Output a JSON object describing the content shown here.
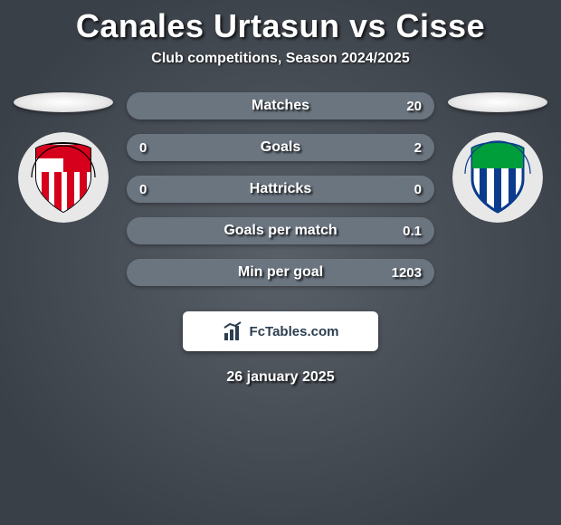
{
  "title": "Canales Urtasun vs Cisse",
  "subtitle": "Club competitions, Season 2024/2025",
  "date": "26 january 2025",
  "attribution": "FcTables.com",
  "colors": {
    "background_center": "#5a6068",
    "background_edge": "#3a4048",
    "pill_bg": "#4b5560",
    "pill_fill_color": "#6b7580",
    "attribution_bg": "#ffffff",
    "attribution_text": "#2c3e50",
    "text": "#ffffff",
    "crest_left_bg": "#e8e8e8",
    "crest_right_bg": "#e8e8e8"
  },
  "players": {
    "left": {
      "name": "Canales Urtasun",
      "club": "Athletic Club Bilbao",
      "crest_colors": {
        "stripes": [
          "#d6001c",
          "#ffffff"
        ],
        "border": "#000000"
      }
    },
    "right": {
      "name": "Cisse",
      "club": "CD Leganes",
      "crest_colors": {
        "stripes": [
          "#0a3b8c",
          "#ffffff"
        ],
        "accent": "#009e3b",
        "border": "#0a3b8c"
      }
    }
  },
  "stats": [
    {
      "label": "Matches",
      "left_value": "",
      "right_value": "20",
      "left_pct": 0,
      "right_pct": 100
    },
    {
      "label": "Goals",
      "left_value": "0",
      "right_value": "2",
      "left_pct": 0,
      "right_pct": 100
    },
    {
      "label": "Hattricks",
      "left_value": "0",
      "right_value": "0",
      "left_pct": 50,
      "right_pct": 50
    },
    {
      "label": "Goals per match",
      "left_value": "",
      "right_value": "0.1",
      "left_pct": 0,
      "right_pct": 100
    },
    {
      "label": "Min per goal",
      "left_value": "",
      "right_value": "1203",
      "left_pct": 0,
      "right_pct": 100
    }
  ],
  "styling": {
    "title_fontsize": 36,
    "subtitle_fontsize": 16,
    "stat_label_fontsize": 16,
    "stat_value_fontsize": 15,
    "date_fontsize": 16,
    "pill_width": 340,
    "pill_height": 30,
    "pill_radius": 15,
    "pill_gap": 16,
    "crest_diameter": 100,
    "ellipse_width": 110,
    "ellipse_height": 22
  }
}
